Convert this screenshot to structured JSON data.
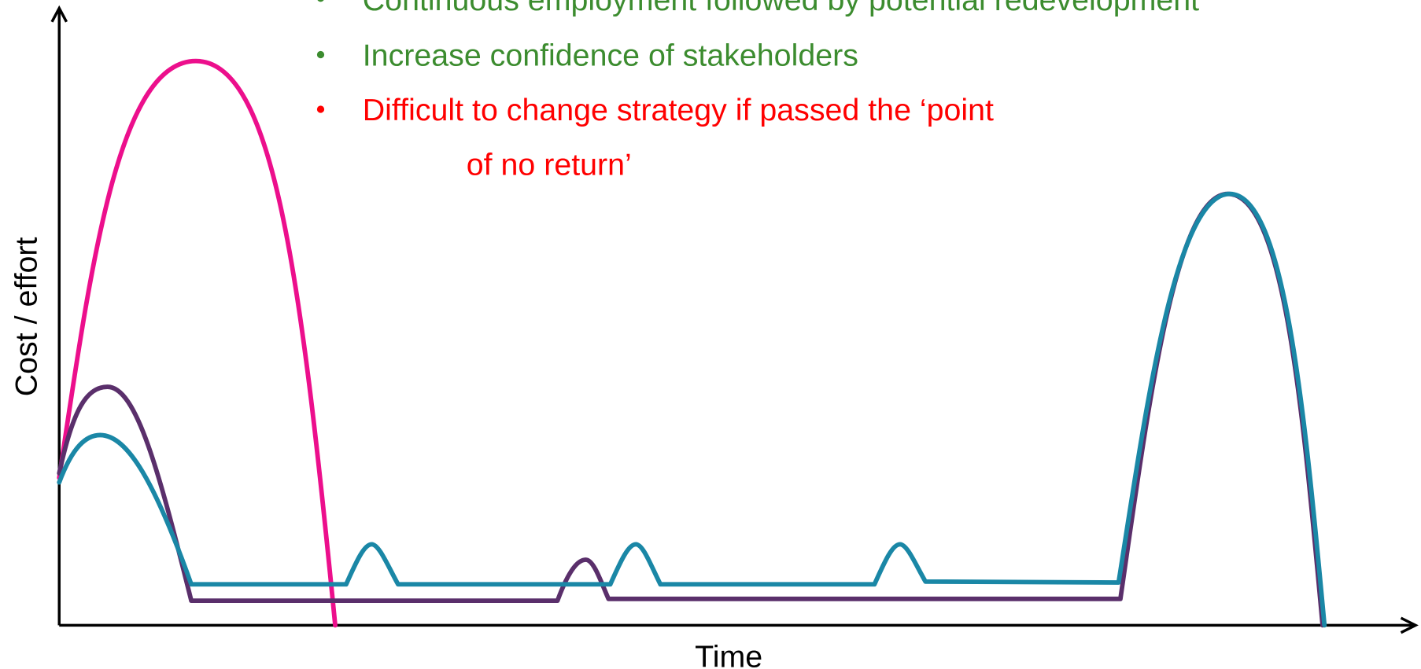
{
  "bullets": [
    {
      "lines": [
        "Continuous employment followed by potential redevelopment"
      ]
    },
    {
      "lines": [
        "Increase confidence of stakeholders"
      ]
    },
    {
      "lines": [
        "Difficult to change strategy if passed the ‘point",
        "of no return’"
      ]
    }
  ],
  "axes": {
    "y_label": "Cost / effort",
    "x_label": "Time"
  }
}
